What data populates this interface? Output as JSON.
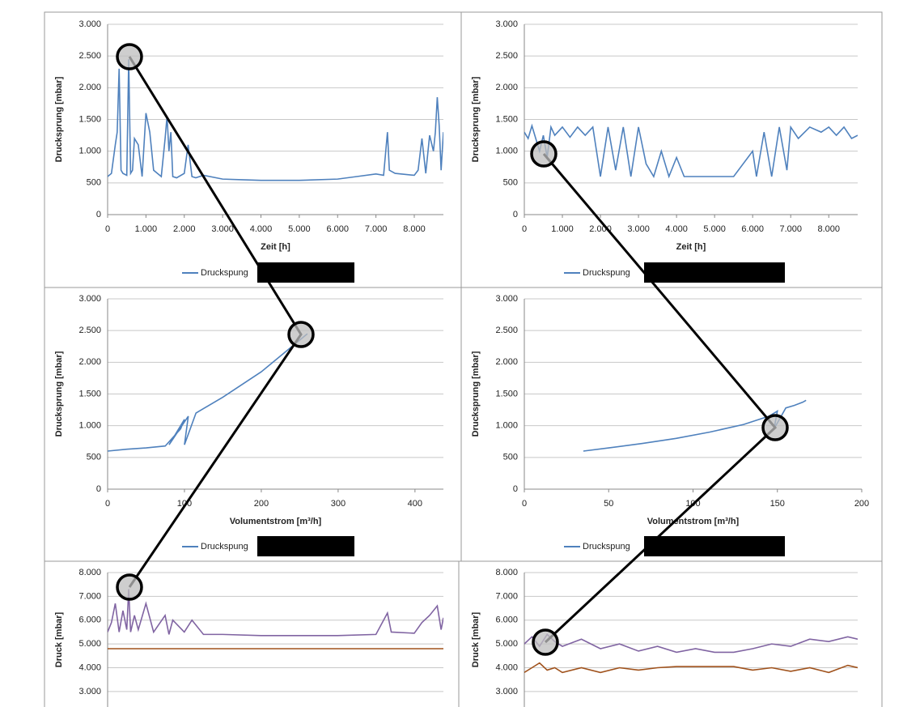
{
  "chart_data": [
    {
      "type": "line",
      "xlabel": "Zeit [h]",
      "ylabel": "Drucksprung [mbar]",
      "grid": true,
      "xlim": [
        0,
        8760
      ],
      "ylim": [
        0,
        3000
      ],
      "xticks": [
        0,
        {
          "value": 1000,
          "label": "1.000"
        },
        {
          "value": 2000,
          "label": "2.000"
        },
        {
          "value": 3000,
          "label": "3.000"
        },
        {
          "value": 4000,
          "label": "4.000"
        },
        {
          "value": 5000,
          "label": "5.000"
        },
        {
          "value": 6000,
          "label": "6.000"
        },
        {
          "value": 7000,
          "label": "7.000"
        },
        {
          "value": 8000,
          "label": "8.000"
        }
      ],
      "yticks": [
        0,
        500,
        {
          "value": 1000,
          "label": "1.000"
        },
        {
          "value": 1500,
          "label": "1.500"
        },
        {
          "value": 2000,
          "label": "2.000"
        },
        {
          "value": 2500,
          "label": "2.500"
        },
        {
          "value": 3000,
          "label": "3.000"
        }
      ],
      "x": [
        0,
        100,
        200,
        250,
        300,
        350,
        400,
        500,
        550,
        600,
        650,
        700,
        800,
        900,
        1000,
        1100,
        1200,
        1300,
        1400,
        1500,
        1550,
        1600,
        1650,
        1700,
        1800,
        2000,
        2100,
        2200,
        2300,
        2500,
        3000,
        3500,
        4000,
        5000,
        6000,
        6500,
        7000,
        7200,
        7300,
        7350,
        7500,
        8000,
        8100,
        8200,
        8300,
        8400,
        8500,
        8550,
        8600,
        8650,
        8700,
        8760
      ],
      "series": [
        {
          "name": "Druckspung",
          "color": "#4f81bd",
          "values": [
            600,
            650,
            1100,
            1300,
            2300,
            700,
            650,
            620,
            2450,
            650,
            700,
            1200,
            1100,
            600,
            1600,
            1300,
            700,
            650,
            600,
            1200,
            1550,
            1000,
            1300,
            600,
            580,
            650,
            1100,
            600,
            580,
            620,
            560,
            550,
            540,
            540,
            560,
            600,
            640,
            620,
            1300,
            700,
            650,
            620,
            700,
            1200,
            650,
            1250,
            1000,
            1300,
            1850,
            1400,
            700,
            1300
          ]
        }
      ]
    },
    {
      "type": "line",
      "xlabel": "Zeit [h]",
      "ylabel": "Drucksprung [mbar]",
      "grid": true,
      "xlim": [
        0,
        8760
      ],
      "ylim": [
        0,
        3000
      ],
      "xticks": [
        0,
        {
          "value": 1000,
          "label": "1.000"
        },
        {
          "value": 2000,
          "label": "2.000"
        },
        {
          "value": 3000,
          "label": "3.000"
        },
        {
          "value": 4000,
          "label": "4.000"
        },
        {
          "value": 5000,
          "label": "5.000"
        },
        {
          "value": 6000,
          "label": "6.000"
        },
        {
          "value": 7000,
          "label": "7.000"
        },
        {
          "value": 8000,
          "label": "8.000"
        }
      ],
      "yticks": [
        0,
        500,
        {
          "value": 1000,
          "label": "1.000"
        },
        {
          "value": 1500,
          "label": "1.500"
        },
        {
          "value": 2000,
          "label": "2.000"
        },
        {
          "value": 2500,
          "label": "2.500"
        },
        {
          "value": 3000,
          "label": "3.000"
        }
      ],
      "x": [
        0,
        100,
        200,
        300,
        400,
        500,
        600,
        700,
        800,
        1000,
        1200,
        1400,
        1600,
        1800,
        2000,
        2200,
        2400,
        2600,
        2800,
        3000,
        3200,
        3400,
        3600,
        3800,
        4000,
        4200,
        4500,
        5000,
        5500,
        6000,
        6100,
        6300,
        6500,
        6700,
        6900,
        7000,
        7200,
        7500,
        7800,
        8000,
        8200,
        8400,
        8600,
        8760
      ],
      "series": [
        {
          "name": "Druckspung",
          "color": "#4f81bd",
          "values": [
            1300,
            1200,
            1400,
            1200,
            1000,
            1250,
            900,
            1380,
            1250,
            1380,
            1220,
            1380,
            1250,
            1380,
            600,
            1380,
            700,
            1380,
            600,
            1380,
            800,
            600,
            1000,
            600,
            900,
            600,
            600,
            600,
            600,
            1000,
            600,
            1300,
            600,
            1380,
            700,
            1380,
            1200,
            1380,
            1300,
            1380,
            1250,
            1380,
            1200,
            1250
          ]
        }
      ]
    },
    {
      "type": "line",
      "xlabel": "Volumentstrom [m³/h]",
      "ylabel": "Drucksprung [mbar]",
      "grid": true,
      "xlim": [
        0,
        437
      ],
      "ylim": [
        0,
        3000
      ],
      "xticks": [
        0,
        100,
        200,
        300,
        400
      ],
      "yticks": [
        0,
        500,
        {
          "value": 1000,
          "label": "1.000"
        },
        {
          "value": 1500,
          "label": "1.500"
        },
        {
          "value": 2000,
          "label": "2.000"
        },
        {
          "value": 2500,
          "label": "2.500"
        },
        {
          "value": 3000,
          "label": "3.000"
        }
      ],
      "x": [
        0,
        25,
        50,
        75,
        95,
        100,
        80,
        105,
        100,
        115,
        150,
        200,
        240,
        260
      ],
      "series": [
        {
          "name": "Druckspung",
          "color": "#4f81bd",
          "values": [
            600,
            630,
            650,
            680,
            950,
            1100,
            700,
            1150,
            700,
            1200,
            1450,
            1850,
            2250,
            2450
          ]
        }
      ]
    },
    {
      "type": "line",
      "xlabel": "Volumentstrom [m³/h]",
      "ylabel": "Drucksprung [mbar]",
      "grid": true,
      "xlim": [
        0,
        200
      ],
      "ylim": [
        0,
        3000
      ],
      "xticks": [
        0,
        50,
        100,
        150,
        200
      ],
      "yticks": [
        0,
        500,
        {
          "value": 1000,
          "label": "1.000"
        },
        {
          "value": 1500,
          "label": "1.500"
        },
        {
          "value": 2000,
          "label": "2.000"
        },
        {
          "value": 2500,
          "label": "2.500"
        },
        {
          "value": 3000,
          "label": "3.000"
        }
      ],
      "x": [
        35,
        50,
        70,
        90,
        110,
        130,
        145,
        150,
        148,
        155,
        160,
        165,
        167
      ],
      "series": [
        {
          "name": "Druckspung",
          "color": "#4f81bd",
          "values": [
            600,
            650,
            720,
            800,
            900,
            1020,
            1150,
            1230,
            950,
            1280,
            1320,
            1370,
            1400
          ]
        }
      ]
    },
    {
      "type": "line",
      "ylabel": "Druck [mbar]",
      "grid": true,
      "xlim": [
        0,
        8760
      ],
      "ylim": [
        0,
        8000
      ],
      "yticks": [
        {
          "value": 3000,
          "label": "3.000"
        },
        {
          "value": 4000,
          "label": "4.000"
        },
        {
          "value": 5000,
          "label": "5.000"
        },
        {
          "value": 6000,
          "label": "6.000"
        },
        {
          "value": 7000,
          "label": "7.000"
        },
        {
          "value": 8000,
          "label": "8.000"
        }
      ],
      "x": [
        0,
        100,
        200,
        300,
        400,
        500,
        550,
        600,
        700,
        800,
        1000,
        1200,
        1500,
        1600,
        1700,
        2000,
        2200,
        2500,
        3000,
        4000,
        5000,
        6000,
        7000,
        7300,
        7400,
        8000,
        8200,
        8400,
        8600,
        8700,
        8760
      ],
      "series": [
        {
          "color": "#8064a2",
          "values": [
            5500,
            5900,
            6700,
            5500,
            6400,
            5600,
            7300,
            5500,
            6200,
            5600,
            6700,
            5500,
            6200,
            5400,
            6000,
            5500,
            6000,
            5400,
            5400,
            5350,
            5350,
            5350,
            5400,
            6300,
            5500,
            5450,
            5900,
            6200,
            6600,
            5600,
            6100
          ]
        },
        {
          "color": "#a0521c",
          "values": [
            4800,
            4800,
            4800,
            4800,
            4800,
            4800,
            4800,
            4800,
            4800,
            4800,
            4800,
            4800,
            4800,
            4800,
            4800,
            4800,
            4800,
            4800,
            4800,
            4800,
            4800,
            4800,
            4800,
            4800,
            4800,
            4800,
            4800,
            4800,
            4800,
            4800,
            4800
          ]
        }
      ]
    },
    {
      "type": "line",
      "ylabel": "Druck [mbar]",
      "grid": true,
      "xlim": [
        0,
        8760
      ],
      "ylim": [
        0,
        8000
      ],
      "yticks": [
        {
          "value": 3000,
          "label": "3.000"
        },
        {
          "value": 4000,
          "label": "4.000"
        },
        {
          "value": 5000,
          "label": "5.000"
        },
        {
          "value": 6000,
          "label": "6.000"
        },
        {
          "value": 7000,
          "label": "7.000"
        },
        {
          "value": 8000,
          "label": "8.000"
        }
      ],
      "x": [
        0,
        200,
        400,
        600,
        800,
        1000,
        1500,
        2000,
        2500,
        3000,
        3500,
        4000,
        4500,
        5000,
        5500,
        6000,
        6500,
        7000,
        7500,
        8000,
        8500,
        8760
      ],
      "series": [
        {
          "color": "#8064a2",
          "values": [
            5000,
            5300,
            4900,
            5400,
            5100,
            4900,
            5200,
            4800,
            5000,
            4700,
            4900,
            4650,
            4800,
            4650,
            4650,
            4800,
            5000,
            4900,
            5200,
            5100,
            5300,
            5200
          ]
        },
        {
          "color": "#a0521c",
          "values": [
            3800,
            4000,
            4200,
            3900,
            4000,
            3800,
            4000,
            3800,
            4000,
            3900,
            4000,
            4050,
            4050,
            4050,
            4050,
            3900,
            4000,
            3850,
            4000,
            3800,
            4100,
            4000
          ]
        }
      ]
    }
  ]
}
